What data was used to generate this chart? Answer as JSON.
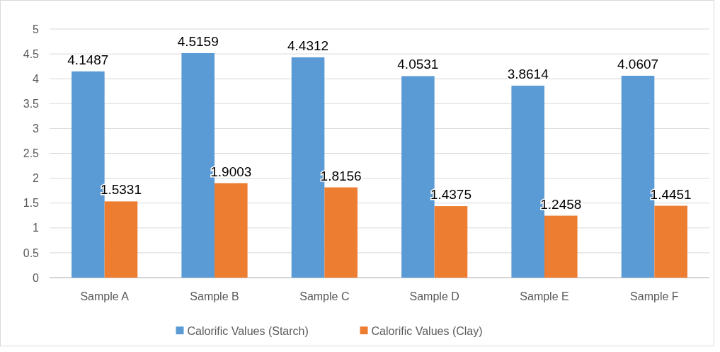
{
  "chart_data": {
    "type": "bar",
    "categories": [
      "Sample A",
      "Sample B",
      "Sample C",
      "Sample D",
      "Sample E",
      "Sample F"
    ],
    "series": [
      {
        "name": "Calorific Values (Starch)",
        "color": "#5b9bd5",
        "values": [
          4.1487,
          4.5159,
          4.4312,
          4.0531,
          3.8614,
          4.0607
        ]
      },
      {
        "name": "Calorific Values (Clay)",
        "color": "#ed7d31",
        "values": [
          1.5331,
          1.9003,
          1.8156,
          1.4375,
          1.2458,
          1.4451
        ]
      }
    ],
    "ylim": [
      0,
      5
    ],
    "yticks": [
      0,
      0.5,
      1,
      1.5,
      2,
      2.5,
      3,
      3.5,
      4,
      4.5,
      5
    ],
    "grid": "y",
    "legend": "bottom",
    "data_labels": true
  }
}
